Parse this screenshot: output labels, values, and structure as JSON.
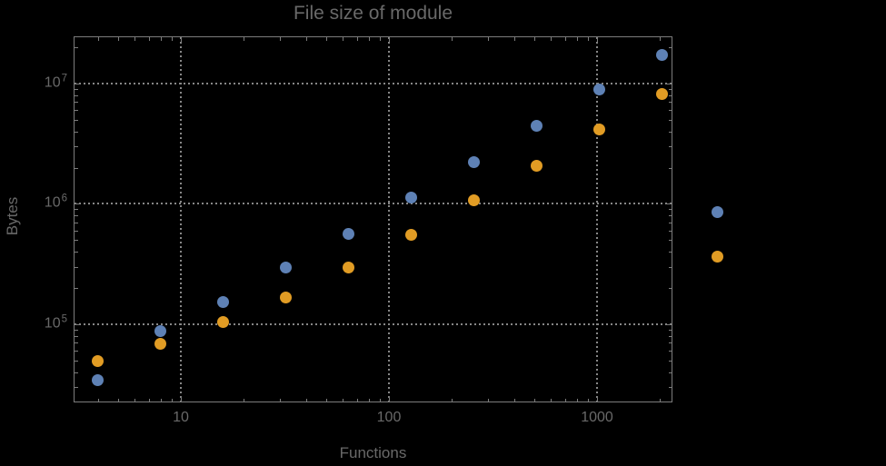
{
  "chart_data": {
    "type": "scatter",
    "title": "File size of module",
    "xlabel": "Functions",
    "ylabel": "Bytes",
    "x_scale": "log",
    "y_scale": "log",
    "xlim": [
      3.05,
      2303
    ],
    "ylim": [
      22400,
      24650000
    ],
    "grid": "dotted",
    "legend_position": "none",
    "x_major_ticks": [
      {
        "value": 10,
        "label": "10"
      },
      {
        "value": 100,
        "label": "100"
      },
      {
        "value": 1000,
        "label": "1000"
      }
    ],
    "y_major_ticks": [
      {
        "value": 100000,
        "base": "10",
        "exp": "5"
      },
      {
        "value": 1000000,
        "base": "10",
        "exp": "6"
      },
      {
        "value": 10000000,
        "base": "10",
        "exp": "7"
      }
    ],
    "x": [
      4,
      8,
      16,
      32,
      64,
      128,
      256,
      512,
      1024,
      2048,
      3800
    ],
    "series": [
      {
        "name": "blue",
        "color": "#5e81b5",
        "values": [
          34000,
          87000,
          152000,
          294000,
          558000,
          1130000,
          2220000,
          4460000,
          8850000,
          17400000,
          855000
        ]
      },
      {
        "name": "orange",
        "color": "#e19c24",
        "values": [
          49000,
          69000,
          105000,
          168000,
          294000,
          550000,
          1070000,
          2070000,
          4160000,
          8190000,
          365000
        ]
      }
    ]
  },
  "colors": {
    "background": "#000000",
    "frame": "#7c7c7c",
    "grid": "#878787",
    "text": "#696969",
    "series_blue": "#5e81b5",
    "series_orange": "#e19c24"
  }
}
